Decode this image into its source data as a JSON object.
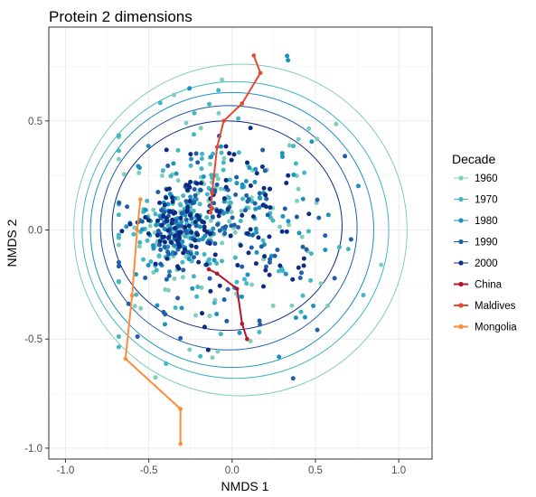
{
  "chart_data": {
    "type": "scatter",
    "title": "Protein 2 dimensions",
    "xlabel": "NMDS 1",
    "ylabel": "NMDS 2",
    "xlim": [
      -1.1,
      1.2
    ],
    "ylim": [
      -1.05,
      0.93
    ],
    "x_ticks": [
      "-1.0",
      "-0.5",
      "0.0",
      "0.5",
      "1.0"
    ],
    "x_tick_values": [
      -1.0,
      -0.5,
      0.0,
      0.5,
      1.0
    ],
    "y_ticks": [
      "0.5",
      "0.0",
      "-0.5",
      "-1.0"
    ],
    "y_tick_values": [
      0.5,
      0.0,
      -0.5,
      -1.0
    ],
    "grid": true,
    "legend": {
      "title": "Decade",
      "position": "right",
      "entries": [
        "1960",
        "1970",
        "1980",
        "1990",
        "2000",
        "China",
        "Maldives",
        "Mongolia"
      ]
    },
    "colors": {
      "1960": "#7fcdbb",
      "1970": "#41b6c4",
      "1980": "#1d91c0",
      "1990": "#225ea8",
      "2000": "#0c2c84",
      "China": "#b2182b",
      "Maldives": "#e34a33",
      "Mongolia": "#fd8d3c"
    },
    "ellipses": [
      {
        "decade": "1960",
        "cx": 0.05,
        "cy": 0.0,
        "rx": 1.0,
        "ry": 0.76
      },
      {
        "decade": "1970",
        "cx": 0.02,
        "cy": 0.0,
        "rx": 0.92,
        "ry": 0.68
      },
      {
        "decade": "1980",
        "cx": 0.0,
        "cy": 0.0,
        "rx": 0.85,
        "ry": 0.63
      },
      {
        "decade": "1990",
        "cx": -0.02,
        "cy": 0.01,
        "rx": 0.77,
        "ry": 0.56
      },
      {
        "decade": "2000",
        "cx": -0.03,
        "cy": 0.02,
        "rx": 0.69,
        "ry": 0.48
      }
    ],
    "paths": [
      {
        "name": "Maldives",
        "points": [
          [
            0.13,
            0.8
          ],
          [
            0.17,
            0.72
          ],
          [
            0.06,
            0.58
          ],
          [
            -0.05,
            0.5
          ],
          [
            -0.09,
            0.38
          ],
          [
            -0.12,
            0.17
          ],
          [
            -0.13,
            0.08
          ],
          [
            -0.12,
            0.1
          ]
        ]
      },
      {
        "name": "China",
        "points": [
          [
            -0.14,
            -0.18
          ],
          [
            -0.09,
            -0.2
          ],
          [
            0.03,
            -0.27
          ],
          [
            0.06,
            -0.43
          ],
          [
            0.09,
            -0.5
          ]
        ]
      },
      {
        "name": "Mongolia",
        "points": [
          [
            -0.55,
            0.14
          ],
          [
            -0.57,
            0.0
          ],
          [
            -0.6,
            -0.3
          ],
          [
            -0.64,
            -0.59
          ],
          [
            -0.31,
            -0.82
          ],
          [
            -0.31,
            -0.98
          ]
        ]
      }
    ],
    "points_summary": "approx. 700 observations for decades 1960-2000, densest around x=-0.4..0.1, y=-0.1..0.2"
  }
}
